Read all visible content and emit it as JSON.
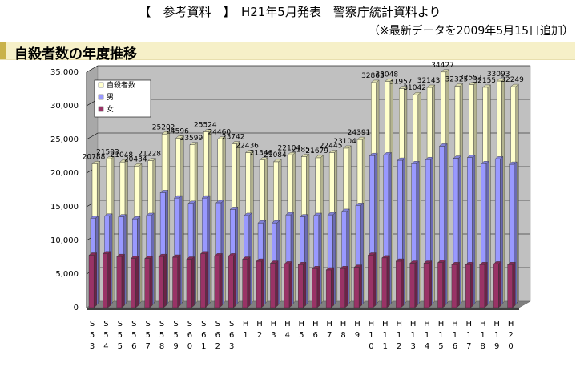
{
  "header": {
    "line1": "【　参考資料　】　H21年5月発表　警察庁統計資料より",
    "line2": "（※最新データを2009年5月15日追加）"
  },
  "title": "自殺者数の年度推移",
  "colors": {
    "total": "#ffffcc",
    "male": "#9999ff",
    "female": "#993366",
    "wall": "#c0c0c0",
    "floor": "#808080"
  },
  "chart_data": {
    "type": "bar",
    "bar_style": "3d-clustered",
    "categories": [
      [
        "S",
        "5",
        "3"
      ],
      [
        "S",
        "5",
        "4"
      ],
      [
        "S",
        "5",
        "5"
      ],
      [
        "S",
        "5",
        "6"
      ],
      [
        "S",
        "5",
        "7"
      ],
      [
        "S",
        "5",
        "8"
      ],
      [
        "S",
        "5",
        "9"
      ],
      [
        "S",
        "6",
        "0"
      ],
      [
        "S",
        "6",
        "1"
      ],
      [
        "S",
        "6",
        "2"
      ],
      [
        "S",
        "6",
        "3"
      ],
      [
        "H",
        "1"
      ],
      [
        "H",
        "2"
      ],
      [
        "H",
        "3"
      ],
      [
        "H",
        "4"
      ],
      [
        "H",
        "5"
      ],
      [
        "H",
        "6"
      ],
      [
        "H",
        "7"
      ],
      [
        "H",
        "8"
      ],
      [
        "H",
        "9"
      ],
      [
        "H",
        "1",
        "0"
      ],
      [
        "H",
        "1",
        "1"
      ],
      [
        "H",
        "1",
        "2"
      ],
      [
        "H",
        "1",
        "3"
      ],
      [
        "H",
        "1",
        "4"
      ],
      [
        "H",
        "1",
        "5"
      ],
      [
        "H",
        "1",
        "6"
      ],
      [
        "H",
        "1",
        "7"
      ],
      [
        "H",
        "1",
        "8"
      ],
      [
        "H",
        "1",
        "9"
      ],
      [
        "H",
        "2",
        "0"
      ]
    ],
    "series": [
      {
        "name": "自殺者数",
        "color": "#ffffcc",
        "values": [
          20788,
          21503,
          21048,
          20434,
          21228,
          25202,
          24596,
          23599,
          25524,
          24460,
          23742,
          22436,
          21346,
          21084,
          22104,
          21851,
          21679,
          22445,
          23104,
          24391,
          32863,
          33048,
          31957,
          31042,
          32143,
          34427,
          32325,
          32552,
          32155,
          33093,
          32249
        ]
      },
      {
        "name": "男",
        "color": "#9999ff",
        "values": [
          13000,
          13300,
          13200,
          12900,
          13400,
          16800,
          16000,
          15200,
          16000,
          15300,
          14300,
          13400,
          12300,
          12300,
          13500,
          13200,
          13400,
          13500,
          14000,
          14900,
          22300,
          22400,
          21600,
          21100,
          21700,
          23700,
          21900,
          22000,
          21100,
          21800,
          21000
        ]
      },
      {
        "name": "女",
        "color": "#993366",
        "values": [
          7800,
          8000,
          7600,
          7300,
          7300,
          7600,
          7500,
          7200,
          8000,
          7700,
          7700,
          7200,
          6900,
          6600,
          6500,
          6400,
          5800,
          5600,
          5800,
          6000,
          7800,
          7400,
          6900,
          6600,
          6600,
          6700,
          6400,
          6400,
          6400,
          6500,
          6400
        ]
      }
    ],
    "value_labels": [
      "20788",
      "21503",
      "21048",
      "20434",
      "21228",
      "25202",
      "24596",
      "23599",
      "25524",
      "24460",
      "23742",
      "22436",
      "21346",
      "21084",
      "22104",
      "21851",
      "21679",
      "22445",
      "23104",
      "24391",
      "32863",
      "33048",
      "31957",
      "31042",
      "32143",
      "34427",
      "32325",
      "32552",
      "32155",
      "33093",
      "32249"
    ],
    "yticks": [
      "0",
      "5,000",
      "10,000",
      "15,000",
      "20,000",
      "25,000",
      "30,000",
      "35,000"
    ],
    "ylim": [
      0,
      35000
    ],
    "grid": true,
    "legend_position": "top-left"
  }
}
